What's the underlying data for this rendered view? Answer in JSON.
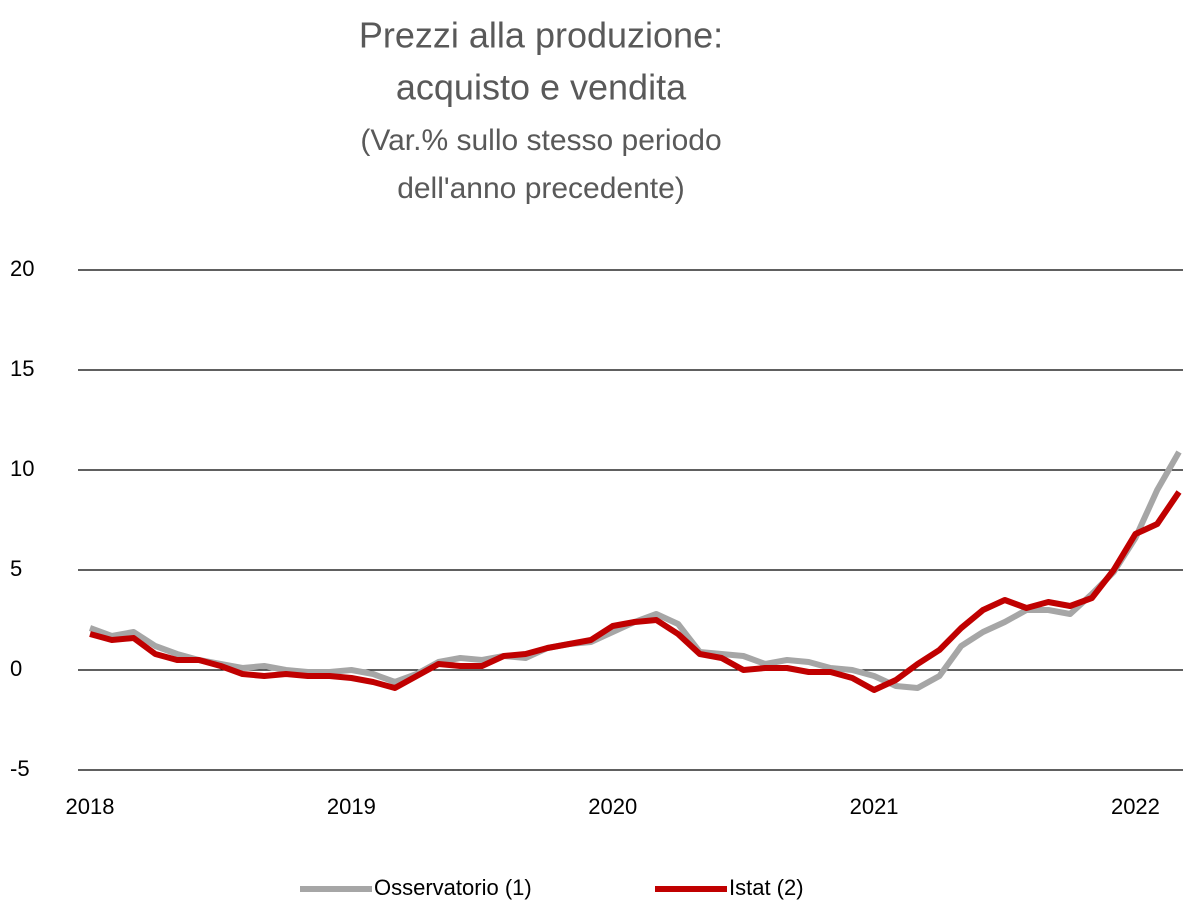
{
  "chart_data": {
    "type": "line",
    "title": [
      "Prezzi alla produzione:",
      "acquisto e vendita"
    ],
    "subtitle": [
      "(Var.% sullo stesso periodo",
      "dell'anno precedente)"
    ],
    "categories": [
      "2018",
      null,
      null,
      null,
      null,
      null,
      null,
      null,
      null,
      null,
      null,
      null,
      "2019",
      null,
      null,
      null,
      null,
      null,
      null,
      null,
      null,
      null,
      null,
      null,
      "2020",
      null,
      null,
      null,
      null,
      null,
      null,
      null,
      null,
      null,
      null,
      null,
      "2021",
      null,
      null,
      null,
      null,
      null,
      null,
      null,
      null,
      null,
      null,
      null,
      "2022",
      null,
      null
    ],
    "series": [
      {
        "name": "Osservatorio (1)",
        "color": "#a6a6a6",
        "values": [
          2.1,
          1.7,
          1.9,
          1.2,
          0.8,
          0.5,
          0.3,
          0.1,
          0.2,
          0.0,
          -0.1,
          -0.1,
          0.0,
          -0.2,
          -0.6,
          -0.2,
          0.4,
          0.6,
          0.5,
          0.7,
          0.6,
          1.1,
          1.3,
          1.4,
          1.9,
          2.4,
          2.8,
          2.3,
          0.9,
          0.8,
          0.7,
          0.3,
          0.5,
          0.4,
          0.1,
          0.0,
          -0.3,
          -0.8,
          -0.9,
          -0.3,
          1.2,
          1.9,
          2.4,
          3.0,
          3.0,
          2.8,
          3.8,
          4.9,
          6.6,
          9.0,
          10.9
        ]
      },
      {
        "name": "Istat (2)",
        "color": "#c00000",
        "values": [
          1.8,
          1.5,
          1.6,
          0.8,
          0.5,
          0.5,
          0.2,
          -0.2,
          -0.3,
          -0.2,
          -0.3,
          -0.3,
          -0.4,
          -0.6,
          -0.9,
          -0.3,
          0.3,
          0.2,
          0.2,
          0.7,
          0.8,
          1.1,
          1.3,
          1.5,
          2.2,
          2.4,
          2.5,
          1.8,
          0.8,
          0.6,
          0.0,
          0.1,
          0.1,
          -0.1,
          -0.1,
          -0.4,
          -1.0,
          -0.5,
          0.3,
          1.0,
          2.1,
          3.0,
          3.5,
          3.1,
          3.4,
          3.2,
          3.6,
          5.0,
          6.8,
          7.3,
          8.9
        ]
      }
    ],
    "ylim": [
      -5,
      20
    ],
    "yticks": [
      -5,
      0,
      5,
      10,
      15,
      20
    ],
    "grid": true,
    "legend": "bottom"
  }
}
